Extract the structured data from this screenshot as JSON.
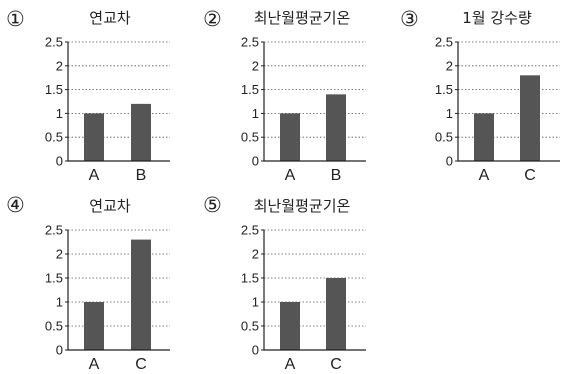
{
  "colors": {
    "bar": "#555555",
    "axis": "#222222",
    "grid": "#555555"
  },
  "chart_data": [
    {
      "type": "bar",
      "number": "①",
      "title": "연교차",
      "categories": [
        "A",
        "B"
      ],
      "values": [
        1.0,
        1.2
      ],
      "yticks": [
        "0",
        "0.5",
        "1",
        "1.5",
        "2",
        "2.5"
      ],
      "ylim": [
        0,
        2.5
      ],
      "grid": true
    },
    {
      "type": "bar",
      "number": "②",
      "title": "최난월평균기온",
      "categories": [
        "A",
        "B"
      ],
      "values": [
        1.0,
        1.4
      ],
      "yticks": [
        "0",
        "0.5",
        "1",
        "1.5",
        "2",
        "2.5"
      ],
      "ylim": [
        0,
        2.5
      ],
      "grid": true
    },
    {
      "type": "bar",
      "number": "③",
      "title": "1월  강수량",
      "categories": [
        "A",
        "C"
      ],
      "values": [
        1.0,
        1.8
      ],
      "yticks": [
        "0",
        "0.5",
        "1",
        "1.5",
        "2",
        "2.5"
      ],
      "ylim": [
        0,
        2.5
      ],
      "grid": true
    },
    {
      "type": "bar",
      "number": "④",
      "title": "연교차",
      "categories": [
        "A",
        "C"
      ],
      "values": [
        1.0,
        2.3
      ],
      "yticks": [
        "0",
        "0.5",
        "1",
        "1.5",
        "2",
        "2.5"
      ],
      "ylim": [
        0,
        2.5
      ],
      "grid": true
    },
    {
      "type": "bar",
      "number": "⑤",
      "title": "최난월평균기온",
      "categories": [
        "A",
        "C"
      ],
      "values": [
        1.0,
        1.5
      ],
      "yticks": [
        "0",
        "0.5",
        "1",
        "1.5",
        "2",
        "2.5"
      ],
      "ylim": [
        0,
        2.5
      ],
      "grid": true
    }
  ]
}
